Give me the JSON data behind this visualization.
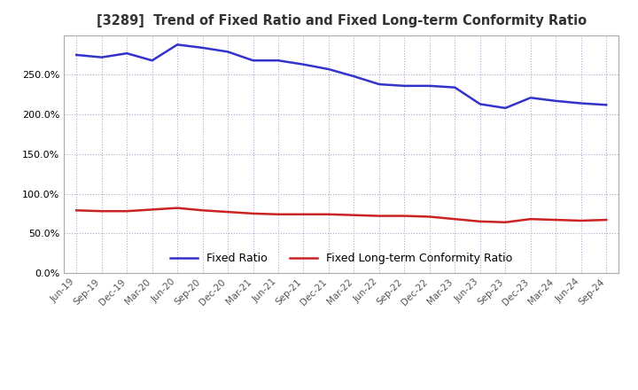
{
  "title": "[3289]  Trend of Fixed Ratio and Fixed Long-term Conformity Ratio",
  "x_labels": [
    "Jun-19",
    "Sep-19",
    "Dec-19",
    "Mar-20",
    "Jun-20",
    "Sep-20",
    "Dec-20",
    "Mar-21",
    "Jun-21",
    "Sep-21",
    "Dec-21",
    "Mar-22",
    "Jun-22",
    "Sep-22",
    "Dec-22",
    "Mar-23",
    "Jun-23",
    "Sep-23",
    "Dec-23",
    "Mar-24",
    "Jun-24",
    "Sep-24"
  ],
  "fixed_ratio": [
    275,
    272,
    277,
    268,
    288,
    284,
    279,
    268,
    268,
    263,
    257,
    248,
    238,
    236,
    236,
    234,
    213,
    208,
    221,
    217,
    214,
    212
  ],
  "fixed_lt_ratio": [
    79,
    78,
    78,
    80,
    82,
    79,
    77,
    75,
    74,
    74,
    74,
    73,
    72,
    72,
    71,
    68,
    65,
    64,
    68,
    67,
    66,
    67
  ],
  "fixed_ratio_color": "#3333CC",
  "fixed_lt_ratio_color": "#CC2222",
  "ylim_min": 0,
  "ylim_max": 300,
  "yticks": [
    0,
    50,
    100,
    150,
    200,
    250
  ],
  "grid_color": "#AAAACC",
  "bg_color": "#FFFFFF",
  "legend_fixed_ratio": "Fixed Ratio",
  "legend_fixed_lt_ratio": "Fixed Long-term Conformity Ratio",
  "title_color": "#333333",
  "tick_color": "#555555"
}
